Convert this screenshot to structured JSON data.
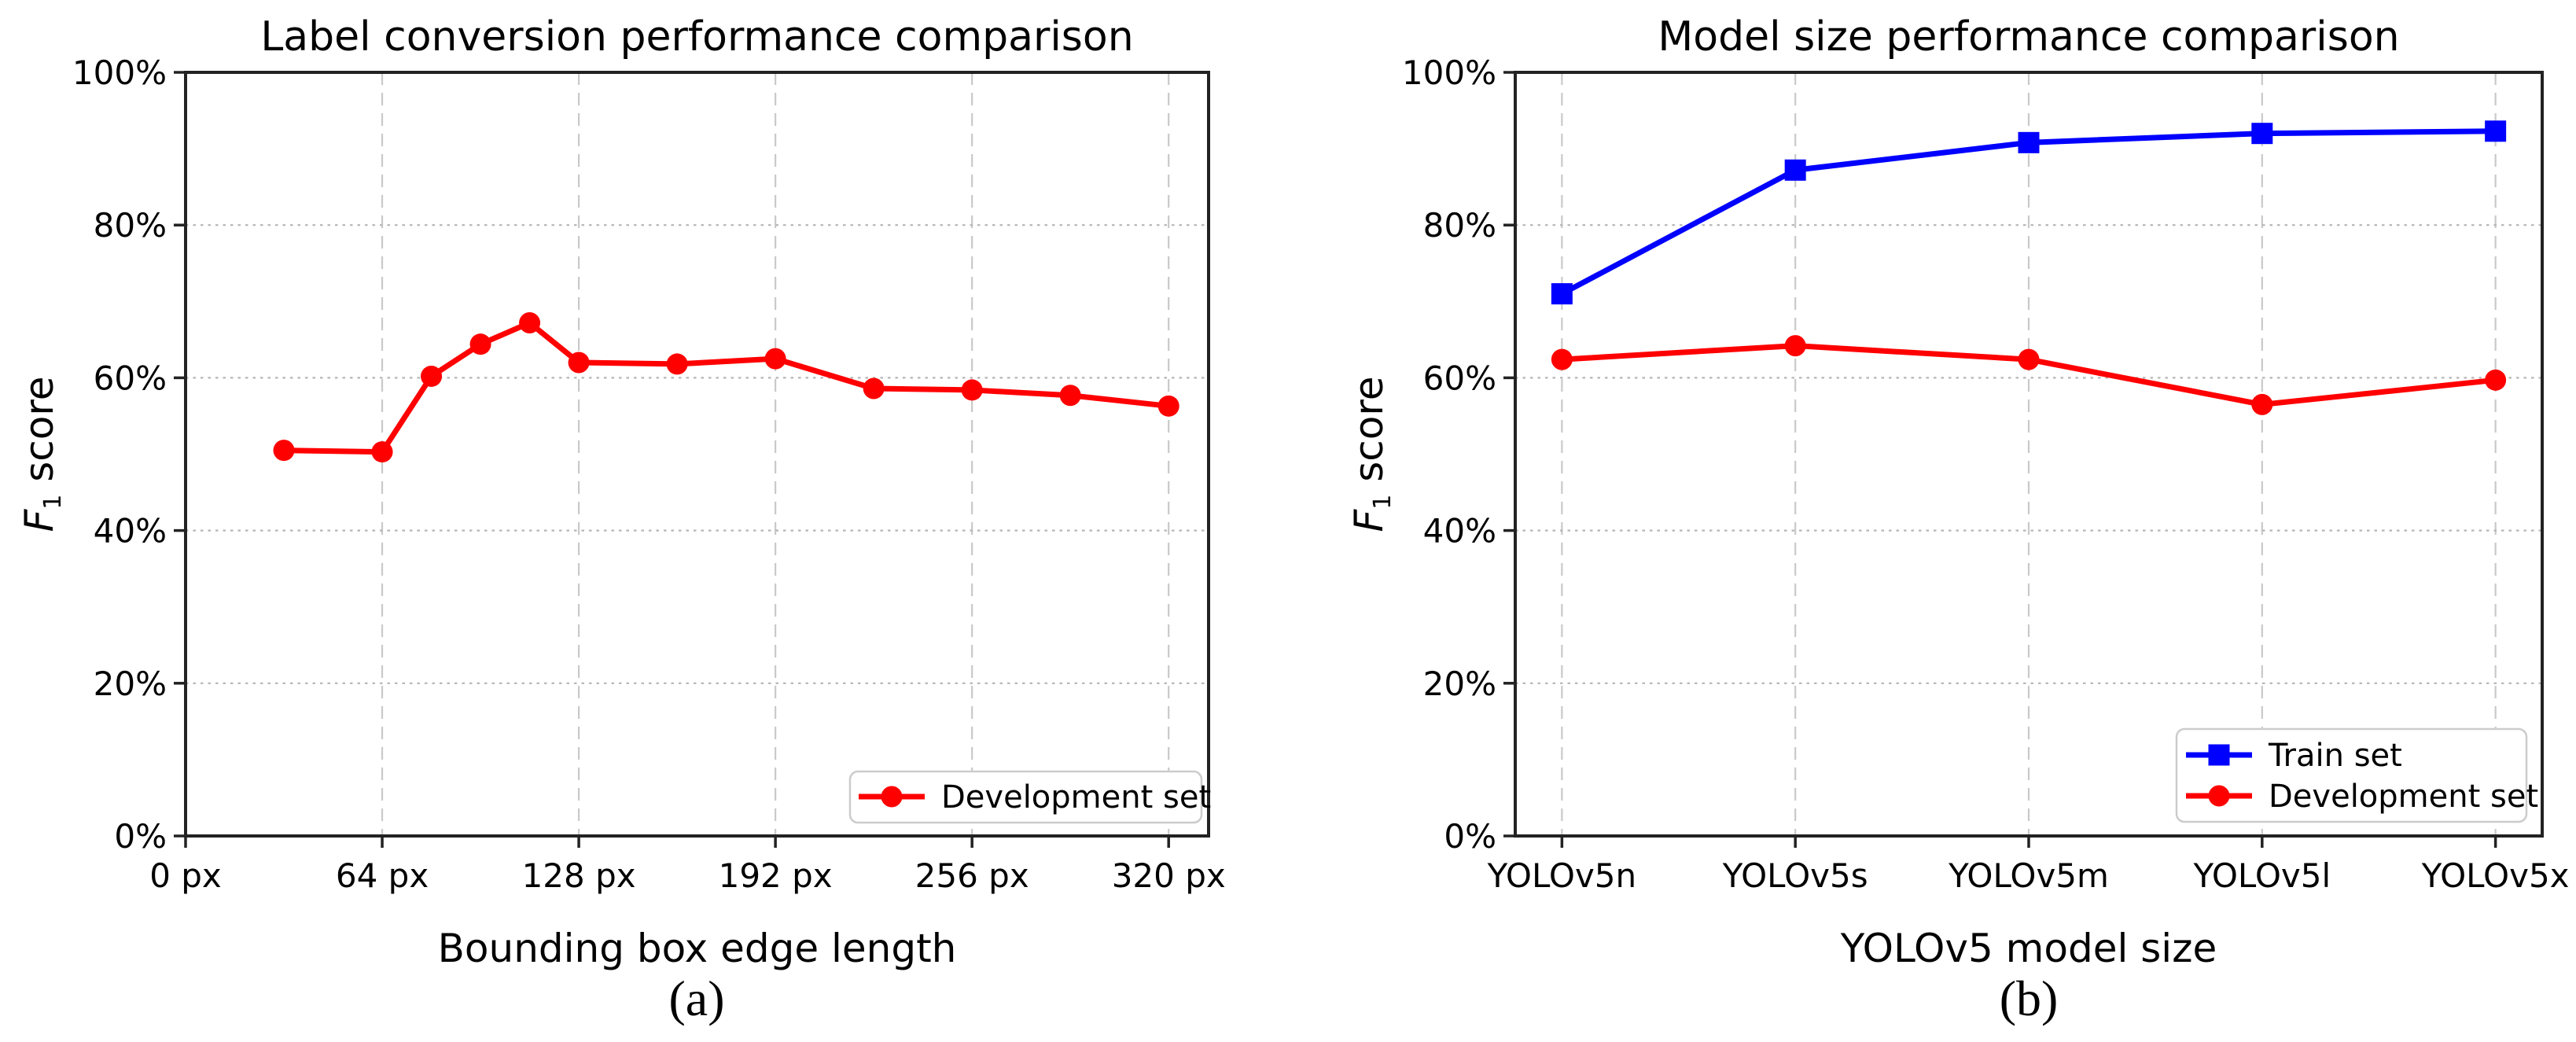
{
  "figure": {
    "background": "#ffffff",
    "grid_color_h": "#b5b5b5",
    "grid_color_v": "#c9c9c9",
    "spine_color": "#222222",
    "text_color": "#000000",
    "legend_border_color": "#cccccc"
  },
  "chart_data": [
    {
      "id": "a",
      "type": "line",
      "title": "Label conversion performance comparison",
      "xlabel": "Bounding box edge length",
      "ylabel": "F1 score",
      "ylabel_parts": {
        "italic": "F",
        "sub": "1",
        "rest": " score"
      },
      "caption": "(a)",
      "x_type": "numeric",
      "x": [
        32,
        64,
        80,
        96,
        112,
        128,
        160,
        192,
        224,
        256,
        288,
        320
      ],
      "xticks": [
        0,
        64,
        128,
        192,
        256,
        320
      ],
      "xtick_labels": [
        "0 px",
        "64 px",
        "128 px",
        "192 px",
        "256 px",
        "320 px"
      ],
      "xlim": [
        0,
        333
      ],
      "ylim": [
        0,
        100
      ],
      "yticks": [
        0,
        20,
        40,
        60,
        80,
        100
      ],
      "ytick_labels": [
        "0%",
        "20%",
        "40%",
        "60%",
        "80%",
        "100%"
      ],
      "grid": true,
      "legend_position": "lower right",
      "series": [
        {
          "name": "Development set",
          "color": "#ff0000",
          "marker": "circle",
          "values": [
            50.5,
            50.3,
            60.2,
            64.4,
            67.2,
            62.0,
            61.8,
            62.5,
            58.6,
            58.4,
            57.7,
            56.3
          ]
        }
      ]
    },
    {
      "id": "b",
      "type": "line",
      "title": "Model size performance comparison",
      "xlabel": "YOLOv5 model size",
      "ylabel": "F1 score",
      "ylabel_parts": {
        "italic": "F",
        "sub": "1",
        "rest": " score"
      },
      "caption": "(b)",
      "x_type": "categorical",
      "categories": [
        "YOLOv5n",
        "YOLOv5s",
        "YOLOv5m",
        "YOLOv5l",
        "YOLOv5x"
      ],
      "ylim": [
        0,
        100
      ],
      "yticks": [
        0,
        20,
        40,
        60,
        80,
        100
      ],
      "ytick_labels": [
        "0%",
        "20%",
        "40%",
        "60%",
        "80%",
        "100%"
      ],
      "grid": true,
      "legend_position": "lower right",
      "series": [
        {
          "name": "Train set",
          "color": "#0000ff",
          "marker": "square",
          "values": [
            71.0,
            87.2,
            90.8,
            92.0,
            92.3
          ]
        },
        {
          "name": "Development set",
          "color": "#ff0000",
          "marker": "circle",
          "values": [
            62.4,
            64.2,
            62.4,
            56.5,
            59.7
          ]
        }
      ]
    }
  ]
}
